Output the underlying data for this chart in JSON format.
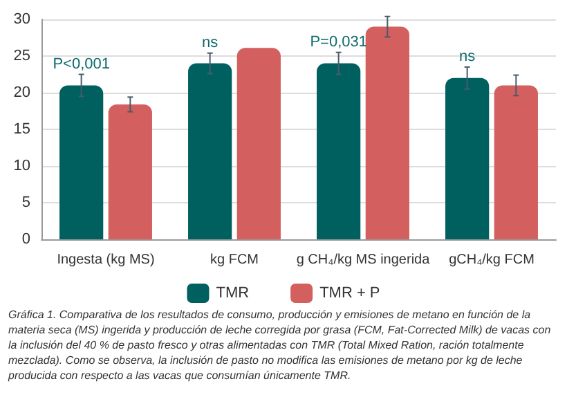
{
  "chart_data": {
    "type": "bar",
    "categories": [
      "Ingesta (kg MS)",
      "kg FCM",
      "g CH₄/kg MS ingerida",
      "gCH₄/kg FCM"
    ],
    "series": [
      {
        "name": "TMR",
        "color": "#00605f",
        "values": [
          21,
          24,
          24,
          22
        ],
        "errors": [
          1.5,
          1.4,
          1.5,
          1.5
        ]
      },
      {
        "name": "TMR + P",
        "color": "#d45f5f",
        "values": [
          18.4,
          26.1,
          29,
          21
        ],
        "errors": [
          1,
          null,
          1.4,
          1.4
        ]
      }
    ],
    "ylim": [
      0,
      30
    ],
    "yticks": [
      0,
      5,
      10,
      15,
      20,
      25,
      30
    ],
    "grid": "y",
    "legend": "bottom",
    "annotations": [
      {
        "text": "P<0,001",
        "x": "Ingesta (kg MS)",
        "y": 21
      },
      {
        "text": "ns",
        "x": "kg FCM",
        "y": 24
      },
      {
        "text": "P=0,031",
        "x": "g CH₄/kg MS ingerida",
        "y": 24
      },
      {
        "text": "ns",
        "x": "gCH₄/kg FCM",
        "y": 22
      },
      "Gráfica 1. Comparativa de los resultados de consumo, producción y emisiones de metano en función de la materia seca (MS) ingerida y producción de leche corregida por grasa (FCM, Fat-Corrected Milk) de vacas con la inclusión del 40 % de pasto fresco y otras alimentadas con TMR (Total Mixed Ration, ración totalmente mezclada). Como se observa, la inclusión de pasto no modifica las emisiones de metano por kg de leche producida con respecto a las vacas que consumían únicamente TMR."
    ]
  }
}
